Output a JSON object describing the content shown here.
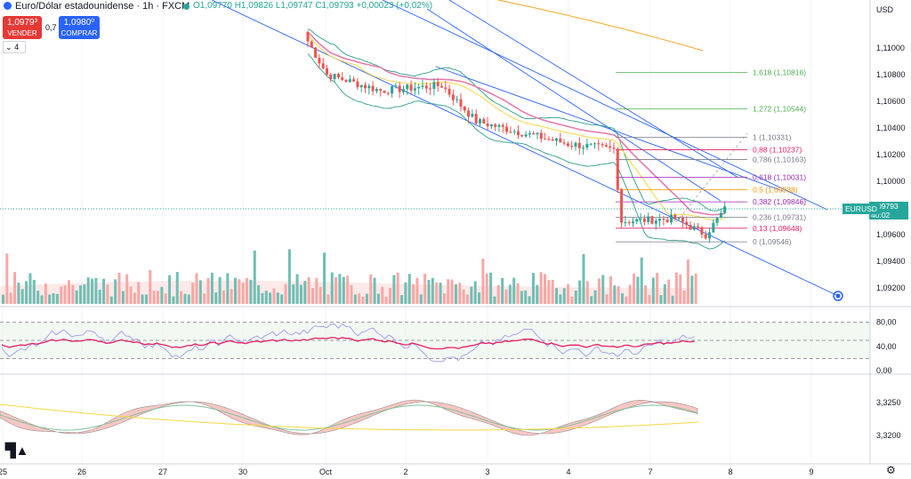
{
  "header": {
    "title": "Euro/Dólar estadounidense · 1h · FXCM",
    "ohlc": "O1,09770 H1,09826 L1,09747 C1,09793 +0,00023 (+0,02%)",
    "sell_price": "1,0979³",
    "sell_label": "VENDER",
    "spread": "0,7",
    "buy_price": "1,0980⁰",
    "buy_label": "COMPRAR",
    "indicators_count": "4",
    "currency": "USD"
  },
  "price_badge": {
    "symbol": "EURUSD",
    "price": "1,09793",
    "countdown": "40:02"
  },
  "colors": {
    "up": "#26a69a",
    "down": "#ef5350",
    "sell": "#e53935",
    "buy": "#2962ff",
    "trend": "#2962ff",
    "bb": "#2e9e88",
    "orange": "#f5a623"
  },
  "chart_data": {
    "type": "candlestick",
    "x_labels": [
      "25",
      "26",
      "27",
      "30",
      "Oct",
      "2",
      "3",
      "4",
      "7",
      "8",
      "9"
    ],
    "price_ticks": [
      "1,11000",
      "1,10800",
      "1,10600",
      "1,10400",
      "1,10200",
      "1,10000",
      "1,09800",
      "1,09600",
      "1,09400",
      "1,09200"
    ],
    "price_range": [
      1.0908,
      1.1128
    ],
    "current_price": 1.09793,
    "fibonacci": [
      {
        "ratio": "0",
        "label": "0 (1,09546)",
        "value": 1.09546,
        "color": "#787b86"
      },
      {
        "ratio": "0.13",
        "label": "0,13 (1,09648)",
        "value": 1.09648,
        "color": "#e91e63"
      },
      {
        "ratio": "0.236",
        "label": "0,236 (1,09731)",
        "value": 1.09731,
        "color": "#787b86"
      },
      {
        "ratio": "0.382",
        "label": "0,382 (1,09846)",
        "value": 1.09846,
        "color": "#9c27b0"
      },
      {
        "ratio": "0.5",
        "label": "0,5 (1,09938)",
        "value": 1.09938,
        "color": "#ff9800"
      },
      {
        "ratio": "0.618",
        "label": "0,618 (1,10031)",
        "value": 1.10031,
        "color": "#9c27b0"
      },
      {
        "ratio": "0.786",
        "label": "0,786 (1,10163)",
        "value": 1.10163,
        "color": "#787b86"
      },
      {
        "ratio": "0.88",
        "label": "0,88 (1,10237)",
        "value": 1.10237,
        "color": "#e91e63"
      },
      {
        "ratio": "1",
        "label": "1 (1,10331)",
        "value": 1.10331,
        "color": "#787b86"
      },
      {
        "ratio": "1.272",
        "label": "1,272 (1,10544)",
        "value": 1.10544,
        "color": "#4caf50"
      },
      {
        "ratio": "1.618",
        "label": "1,618 (1,10816)",
        "value": 1.10816,
        "color": "#4caf50"
      }
    ],
    "segments": [
      {
        "from": 1.111,
        "to": 1.108,
        "n": 6
      },
      {
        "from": 1.108,
        "to": 1.1068,
        "n": 14
      },
      {
        "from": 1.1068,
        "to": 1.1072,
        "n": 16
      },
      {
        "from": 1.1072,
        "to": 1.1045,
        "n": 9
      },
      {
        "from": 1.1045,
        "to": 1.1035,
        "n": 14
      },
      {
        "from": 1.1035,
        "to": 1.1028,
        "n": 10
      },
      {
        "from": 1.1028,
        "to": 1.1024,
        "n": 12
      },
      {
        "from": 1.1024,
        "to": 1.097,
        "n": 2
      },
      {
        "from": 1.097,
        "to": 1.0972,
        "n": 14
      },
      {
        "from": 1.0972,
        "to": 1.096,
        "n": 8
      },
      {
        "from": 1.096,
        "to": 1.0979,
        "n": 5
      }
    ],
    "rsi": {
      "ticks": [
        "80,00",
        "40,00",
        "0,00"
      ],
      "range": [
        0,
        100
      ],
      "upper": 80,
      "lower": 20,
      "mid": 50
    },
    "osc": {
      "ticks": [
        "3,3250",
        "3,3200"
      ]
    }
  }
}
